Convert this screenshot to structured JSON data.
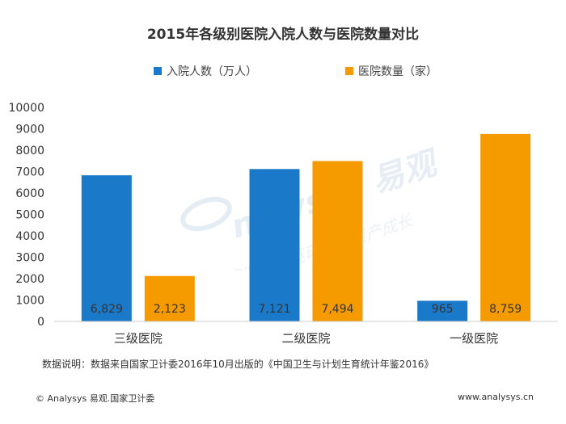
{
  "title": "2015年各级别医院入院人数与医院数量对比",
  "colors": {
    "series1": "#1a7ac9",
    "series2": "#f59b00",
    "axis": "#cccccc",
    "text": "#333333"
  },
  "chart_data": {
    "type": "bar",
    "title": "2015年各级别医院入院人数与医院数量对比",
    "categories": [
      "三级医院",
      "二级医院",
      "一级医院"
    ],
    "series": [
      {
        "name": "入院人数（万人）",
        "values": [
          6829,
          7121,
          965
        ],
        "labels": [
          "6,829",
          "7,121",
          "965"
        ]
      },
      {
        "name": "医院数量（家）",
        "values": [
          2123,
          7494,
          8759
        ],
        "labels": [
          "2,123",
          "7,494",
          "8,759"
        ]
      }
    ],
    "ylim": [
      0,
      10000
    ],
    "yticks": [
      "0",
      "1000",
      "2000",
      "3000",
      "4000",
      "5000",
      "6000",
      "7000",
      "8000",
      "9000",
      "10000"
    ],
    "legend_position": "top",
    "grid": false
  },
  "note": "数据说明：数据来自国家卫计委2016年10月出版的《中国卫生与计划生育统计年鉴2016》",
  "footer": {
    "left": "© Analysys 易观.国家卫计委",
    "right": "www.analysys.cn"
  },
  "watermark": {
    "brand": "nalysys 易观",
    "slogan": "实时分析驱动用户资产成长"
  }
}
